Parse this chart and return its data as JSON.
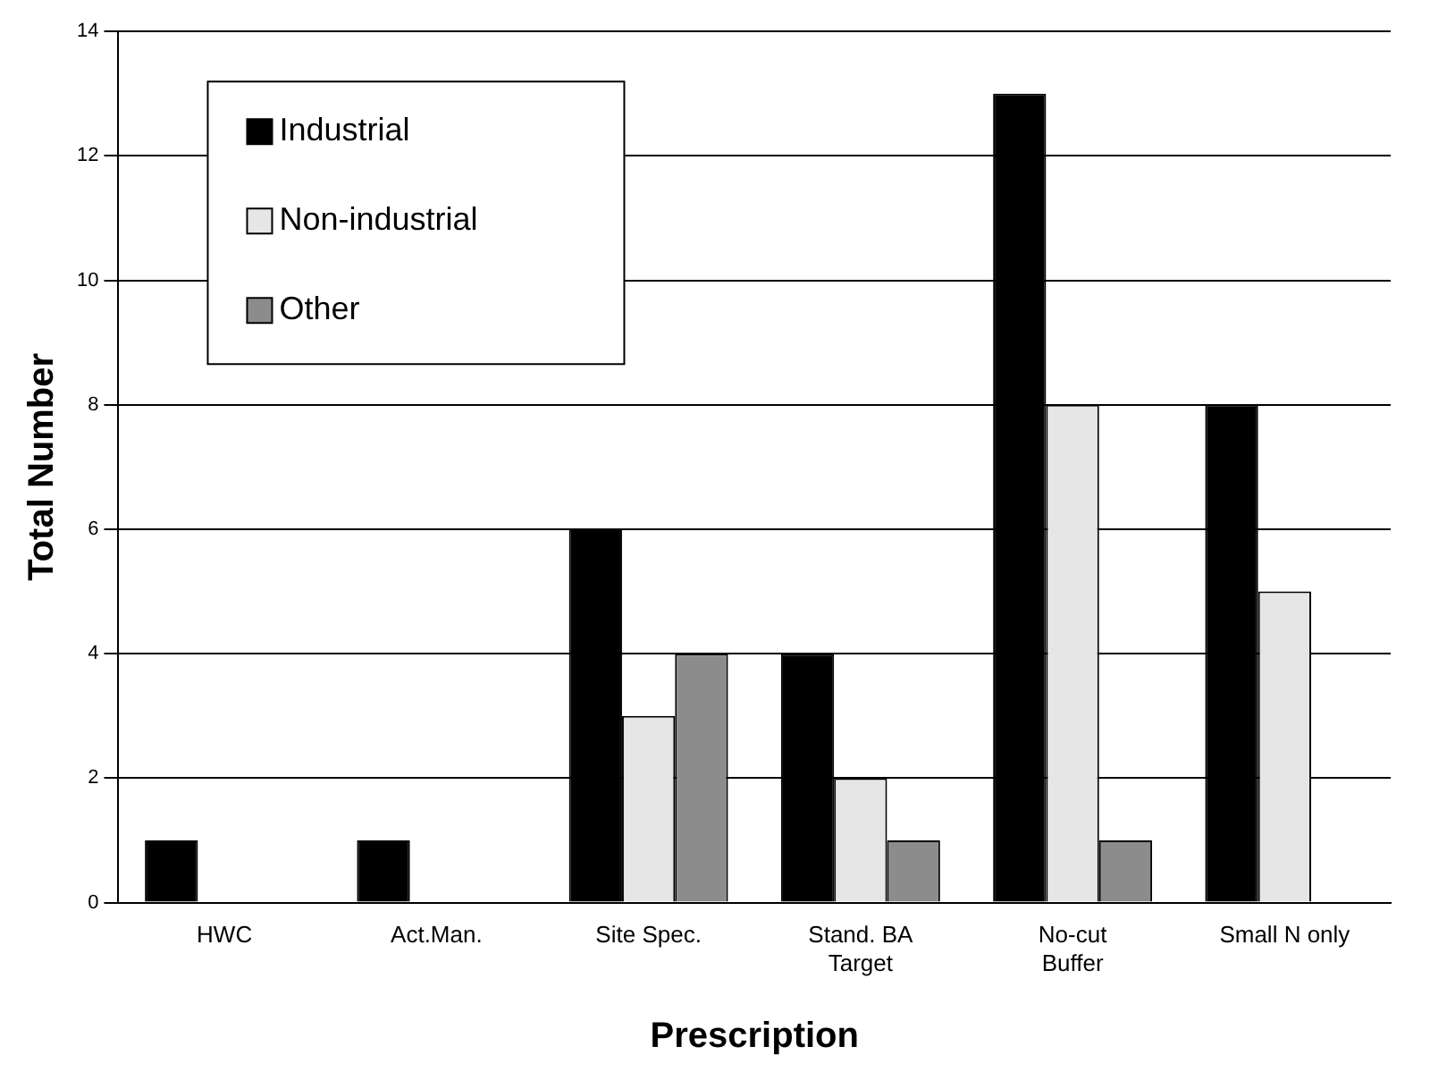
{
  "chart_data": {
    "type": "bar",
    "xlabel": "Prescription",
    "ylabel": "Total Number",
    "categories": [
      "HWC",
      "Act.Man.",
      "Site Spec.",
      "Stand. BA\nTarget",
      "No-cut\nBuffer",
      "Small N only"
    ],
    "series": [
      {
        "name": "Industrial",
        "color": "#000000",
        "values": [
          1,
          1,
          6,
          4,
          13,
          8
        ]
      },
      {
        "name": "Non-industrial",
        "color": "#e6e6e6",
        "values": [
          0,
          0,
          3,
          2,
          8,
          5
        ]
      },
      {
        "name": "Other",
        "color": "#8c8c8c",
        "values": [
          0,
          0,
          4,
          1,
          1,
          0
        ]
      }
    ],
    "ylim": [
      0,
      14
    ],
    "yticks": [
      0,
      2,
      4,
      6,
      8,
      10,
      12,
      14
    ],
    "grid": "y",
    "legend": "top left"
  }
}
